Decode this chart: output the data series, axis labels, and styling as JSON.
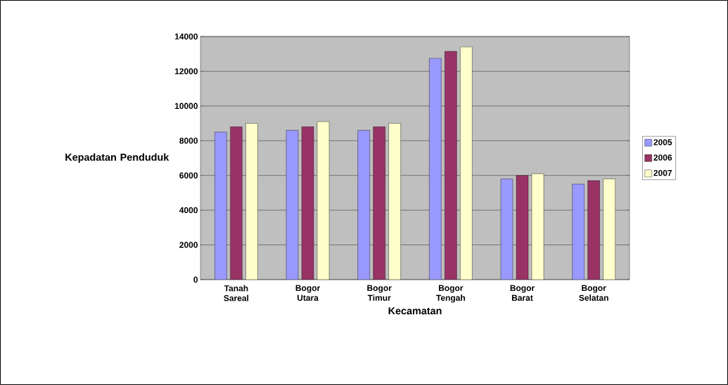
{
  "chart_data": {
    "type": "bar",
    "xlabel": "Kecamatan",
    "ylabel": "Kepadatan Penduduk",
    "categories": [
      "Tanah Sareal",
      "Bogor Utara",
      "Bogor Timur",
      "Bogor Tengah",
      "Bogor Barat",
      "Bogor Selatan"
    ],
    "series": [
      {
        "name": "2005",
        "color": "#9999ff",
        "values": [
          8500,
          8600,
          8600,
          12750,
          5800,
          5500
        ]
      },
      {
        "name": "2006",
        "color": "#993366",
        "values": [
          8800,
          8800,
          8800,
          13150,
          6000,
          5700
        ]
      },
      {
        "name": "2007",
        "color": "#ffffcc",
        "values": [
          9000,
          9100,
          9000,
          13400,
          6100,
          5800
        ]
      }
    ],
    "ylim": [
      0,
      14000
    ],
    "yticks": [
      0,
      2000,
      4000,
      6000,
      8000,
      10000,
      12000,
      14000
    ],
    "grid": "y",
    "legend": "right"
  }
}
